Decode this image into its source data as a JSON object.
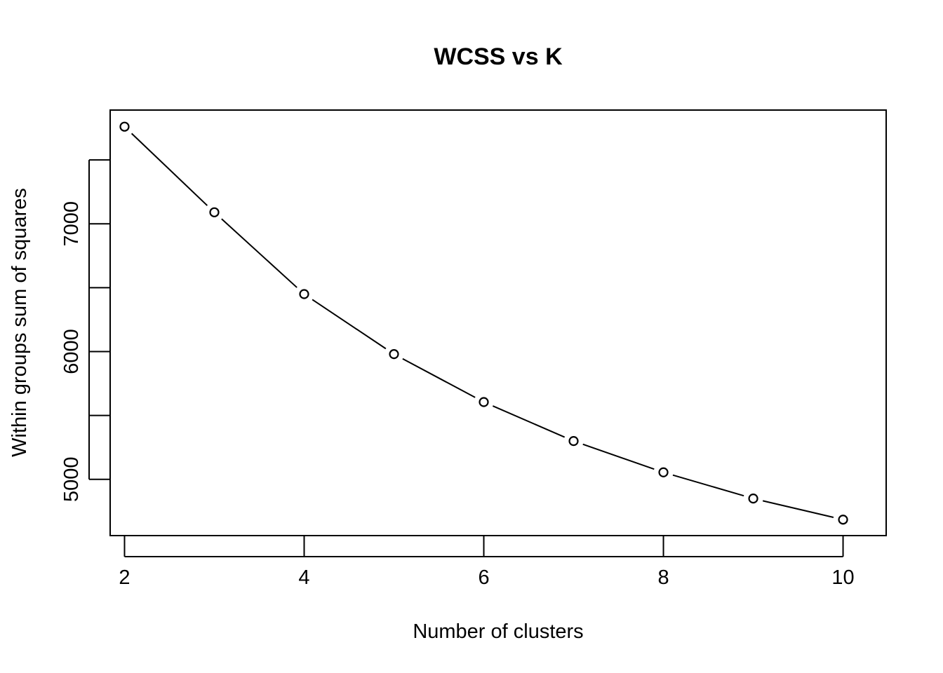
{
  "chart_data": {
    "type": "line",
    "title": "WCSS vs K",
    "xlabel": "Number of clusters",
    "ylabel": "Within groups sum of squares",
    "x": [
      2,
      3,
      4,
      5,
      6,
      7,
      8,
      9,
      10
    ],
    "series": [
      {
        "name": "WCSS",
        "values": [
          7760,
          7090,
          6450,
          5980,
          5605,
          5300,
          5055,
          4850,
          4685
        ]
      }
    ],
    "xlim": [
      1.84,
      10.48
    ],
    "ylim": [
      4560,
      7890
    ],
    "xticks": [
      2,
      4,
      6,
      8,
      10
    ],
    "yticks": [
      5000,
      5500,
      6000,
      6500,
      7000,
      7500
    ],
    "ytick_labels": [
      "5000",
      "",
      "6000",
      "",
      "7000",
      ""
    ],
    "marker": "open-circle",
    "line_gaps_at_points": true
  }
}
